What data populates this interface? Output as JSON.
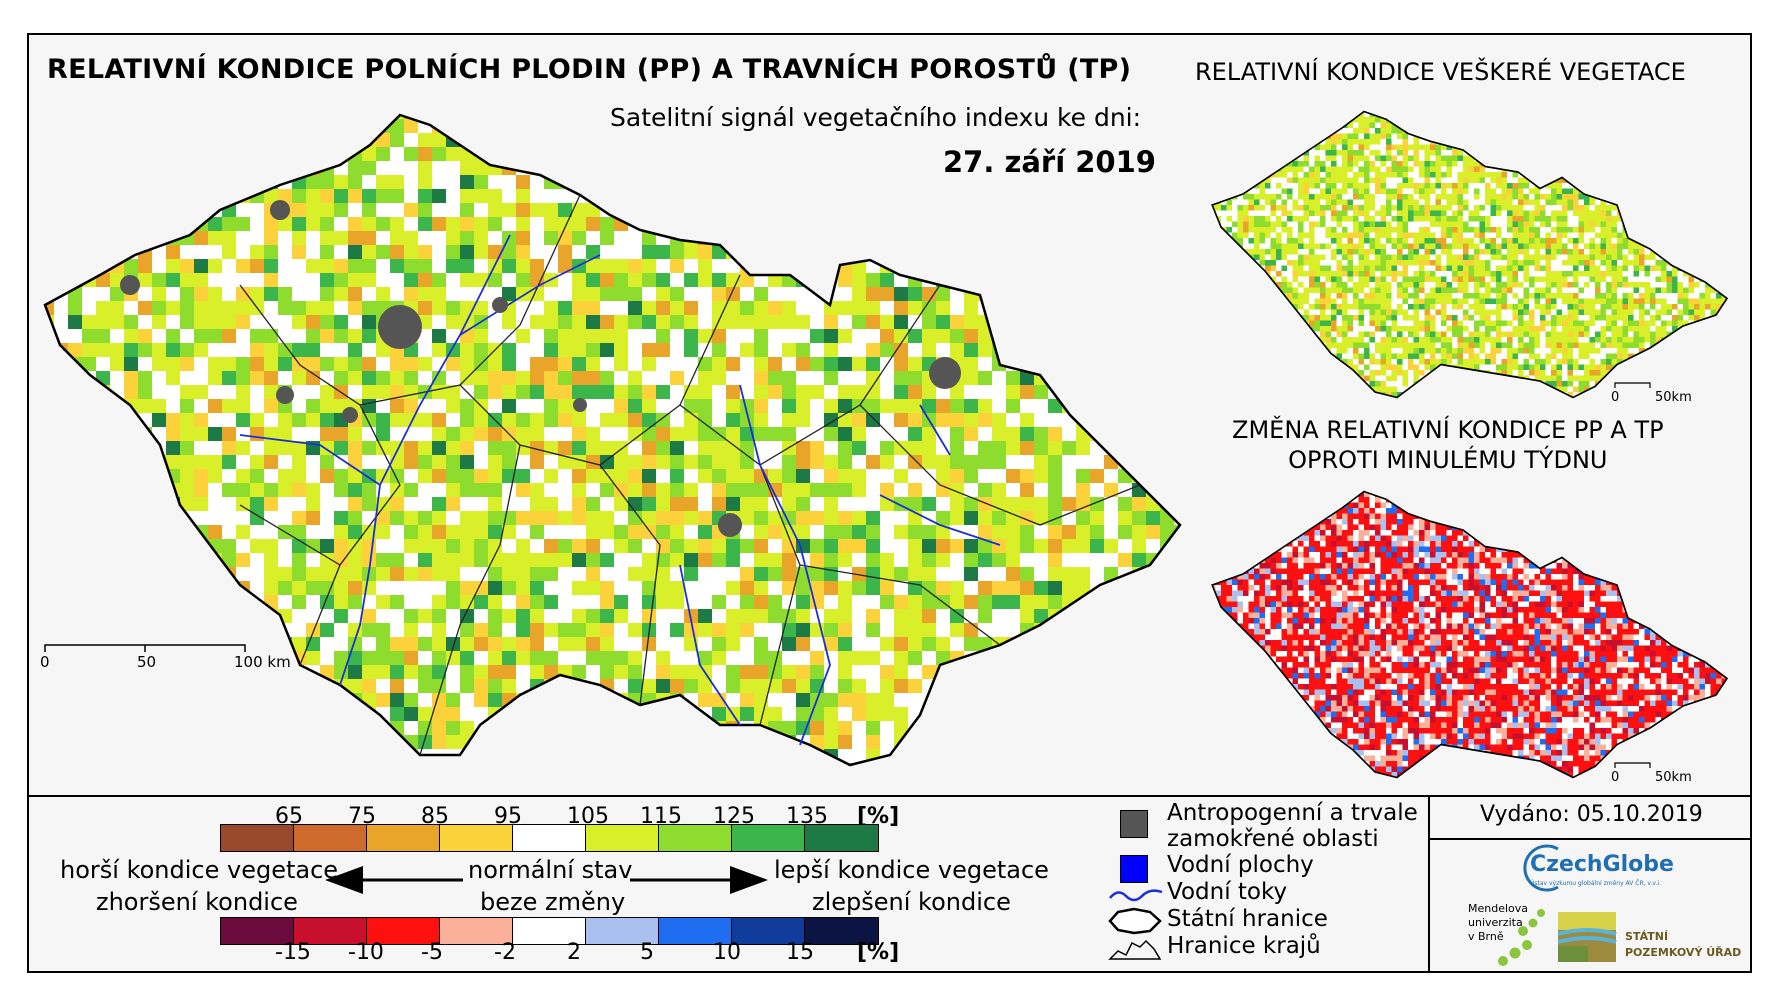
{
  "title": "RELATIVNÍ KONDICE POLNÍCH PLODIN (PP) A TRAVNÍCH POROSTŮ (TP)",
  "subtitle": "Satelitní signál vegetačního indexu ke dni:",
  "date": "27. září 2019",
  "inset_vegetation_title": "RELATIVNÍ KONDICE VEŠKERÉ VEGETACE",
  "inset_change_title_line1": "ZMĚNA RELATIVNÍ KONDICE PP A TP",
  "inset_change_title_line2": "OPROTI MINULÉMU TÝDNU",
  "scale_main": {
    "labels": [
      "0",
      "50",
      "100 km"
    ]
  },
  "scale_inset": {
    "labels": [
      "0",
      "50km"
    ]
  },
  "condition_legend": {
    "ticks": [
      "65",
      "75",
      "85",
      "95",
      "105",
      "115",
      "125",
      "135",
      "[%]"
    ],
    "colors": [
      "#9a4a2c",
      "#cd6a2c",
      "#e8a52a",
      "#fbd23a",
      "#ffffff",
      "#d8ef2a",
      "#8ddc2e",
      "#3cb54a",
      "#1e7a45"
    ]
  },
  "change_legend": {
    "ticks": [
      "-15",
      "-10",
      "-5",
      "-2",
      "2",
      "5",
      "10",
      "15",
      "[%]"
    ],
    "colors": [
      "#6b0a3d",
      "#c8102e",
      "#ff1010",
      "#fbb09a",
      "#ffffff",
      "#a9c0f0",
      "#1f6ef2",
      "#103c9c",
      "#0b1442"
    ]
  },
  "legend_text": {
    "worse_line1": "horší kondice vegetace",
    "worse_line2": "zhoršení kondice",
    "normal_line1": "normální stav",
    "normal_line2": "beze změny",
    "better_line1": "lepší kondice vegetace",
    "better_line2": "zlepšení kondice"
  },
  "symbols": {
    "anthropogenic_line1": "Antropogenní a trvale",
    "anthropogenic_line2": "zamokřené oblasti",
    "water_bodies": "Vodní plochy",
    "rivers": "Vodní toky",
    "state_border": "Státní hranice",
    "region_border": "Hranice krajů"
  },
  "issued": "Vydáno: 05.10.2019",
  "logos": {
    "czechglobe": "CzechGlobe",
    "czechglobe_small": "Ústav výzkumu globální změny AV ČR, v.v.i.",
    "mendel_line1": "Mendelova",
    "mendel_line2": "univerzita",
    "mendel_line3": "v Brně",
    "spu_line1": "STÁTNÍ",
    "spu_line2": "POZEMKOVÝ ÚŘAD"
  },
  "colors": {
    "anthropogenic": "#555555",
    "water": "#0000ff",
    "river": "#1a2fd6",
    "border": "#000000"
  }
}
